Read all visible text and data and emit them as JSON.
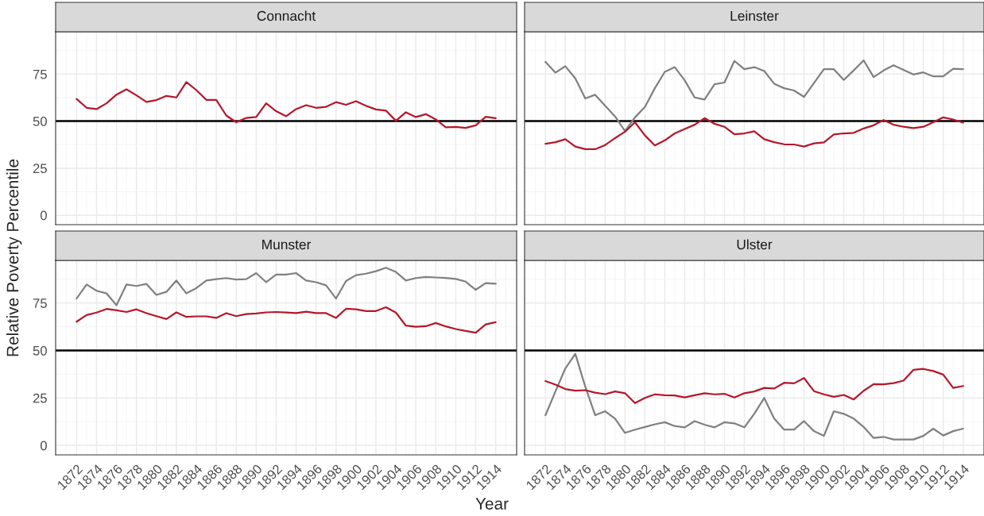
{
  "chart_data": [
    {
      "type": "line",
      "title": "Connacht",
      "xlabel": "Year",
      "ylabel": "Relative Poverty Percentile",
      "x": [
        1872,
        1873,
        1874,
        1875,
        1876,
        1877,
        1878,
        1879,
        1880,
        1881,
        1882,
        1883,
        1884,
        1885,
        1886,
        1887,
        1888,
        1889,
        1890,
        1891,
        1892,
        1893,
        1894,
        1895,
        1896,
        1897,
        1898,
        1899,
        1900,
        1901,
        1902,
        1903,
        1904,
        1905,
        1906,
        1907,
        1908,
        1909,
        1910,
        1911,
        1912,
        1913,
        1914
      ],
      "xlim": [
        1869.9,
        1916.1
      ],
      "xticks": [
        1872,
        1874,
        1876,
        1878,
        1880,
        1882,
        1884,
        1886,
        1888,
        1890,
        1892,
        1894,
        1896,
        1898,
        1900,
        1902,
        1904,
        1906,
        1908,
        1910,
        1912,
        1914
      ],
      "ylim": [
        -5,
        97.5
      ],
      "yticks": [
        0,
        25,
        50,
        75
      ],
      "grid": true,
      "legend": false,
      "tick_labels": "y",
      "ref_lines": [
        {
          "axis": "y",
          "value": 50,
          "color": "#000000"
        }
      ],
      "series": [
        {
          "color": "#b5172b",
          "values": [
            61.8,
            57.1,
            56.4,
            59.5,
            64.1,
            66.9,
            63.7,
            60.2,
            61.2,
            63.4,
            62.6,
            70.8,
            66.5,
            61.3,
            61.3,
            53.0,
            49.4,
            51.7,
            52.2,
            59.5,
            55.3,
            52.6,
            56.4,
            58.5,
            57.1,
            57.6,
            60.1,
            58.7,
            60.6,
            58.2,
            56.2,
            55.6,
            50.2,
            54.7,
            52.2,
            53.7,
            50.9,
            46.7,
            46.9,
            46.4,
            47.8,
            52.3,
            51.6
          ]
        }
      ]
    },
    {
      "type": "line",
      "title": "Leinster",
      "x": [
        1872,
        1873,
        1874,
        1875,
        1876,
        1877,
        1878,
        1879,
        1880,
        1881,
        1882,
        1883,
        1884,
        1885,
        1886,
        1887,
        1888,
        1889,
        1890,
        1891,
        1892,
        1893,
        1894,
        1895,
        1896,
        1897,
        1898,
        1899,
        1900,
        1901,
        1902,
        1903,
        1904,
        1905,
        1906,
        1907,
        1908,
        1909,
        1910,
        1911,
        1912,
        1913,
        1914
      ],
      "xlim": [
        1869.9,
        1916.1
      ],
      "xticks": [
        1872,
        1874,
        1876,
        1878,
        1880,
        1882,
        1884,
        1886,
        1888,
        1890,
        1892,
        1894,
        1896,
        1898,
        1900,
        1902,
        1904,
        1906,
        1908,
        1910,
        1912,
        1914
      ],
      "ylim": [
        -5,
        97.5
      ],
      "yticks": [
        0,
        25,
        50,
        75
      ],
      "grid": true,
      "legend": false,
      "tick_labels": false,
      "ref_lines": [
        {
          "axis": "y",
          "value": 50,
          "color": "#000000"
        }
      ],
      "series": [
        {
          "color": "#808080",
          "values": [
            81.5,
            75.8,
            79.2,
            72.7,
            62.1,
            64.0,
            58.2,
            52.5,
            44.7,
            52.0,
            57.5,
            67.5,
            76.2,
            78.7,
            71.7,
            62.6,
            61.5,
            69.6,
            70.5,
            82.0,
            77.6,
            78.7,
            76.6,
            69.9,
            67.5,
            66.3,
            62.9,
            70.2,
            77.6,
            77.6,
            71.9,
            77.0,
            82.3,
            73.4,
            76.9,
            79.7,
            77.3,
            74.8,
            75.9,
            73.8,
            73.8,
            77.8,
            77.6
          ]
        },
        {
          "color": "#b5172b",
          "values": [
            38.0,
            38.8,
            40.4,
            36.5,
            35.1,
            35.1,
            37.3,
            41.0,
            44.4,
            49.4,
            42.4,
            37.1,
            39.8,
            43.5,
            45.8,
            48.1,
            51.6,
            48.6,
            47.0,
            43.0,
            43.5,
            44.6,
            40.4,
            38.8,
            37.7,
            37.6,
            36.5,
            38.2,
            38.7,
            42.9,
            43.5,
            43.8,
            46.1,
            47.8,
            50.6,
            48.1,
            47.0,
            46.3,
            47.0,
            49.4,
            52.0,
            50.9,
            49.2
          ]
        }
      ]
    },
    {
      "type": "line",
      "title": "Munster",
      "x": [
        1872,
        1873,
        1874,
        1875,
        1876,
        1877,
        1878,
        1879,
        1880,
        1881,
        1882,
        1883,
        1884,
        1885,
        1886,
        1887,
        1888,
        1889,
        1890,
        1891,
        1892,
        1893,
        1894,
        1895,
        1896,
        1897,
        1898,
        1899,
        1900,
        1901,
        1902,
        1903,
        1904,
        1905,
        1906,
        1907,
        1908,
        1909,
        1910,
        1911,
        1912,
        1913,
        1914
      ],
      "xlim": [
        1869.9,
        1916.1
      ],
      "xticks": [
        1872,
        1874,
        1876,
        1878,
        1880,
        1882,
        1884,
        1886,
        1888,
        1890,
        1892,
        1894,
        1896,
        1898,
        1900,
        1902,
        1904,
        1906,
        1908,
        1910,
        1912,
        1914
      ],
      "ylim": [
        -5,
        97.5
      ],
      "yticks": [
        0,
        25,
        50,
        75
      ],
      "grid": true,
      "legend": false,
      "ref_lines": [
        {
          "axis": "y",
          "value": 50,
          "color": "#000000"
        }
      ],
      "series": [
        {
          "color": "#808080",
          "values": [
            77.4,
            84.8,
            81.5,
            80.1,
            73.9,
            84.8,
            84.0,
            85.1,
            79.3,
            80.9,
            86.9,
            80.1,
            82.9,
            86.9,
            87.6,
            88.2,
            87.4,
            87.6,
            90.8,
            86.0,
            90.0,
            90.0,
            90.8,
            86.9,
            86.0,
            84.4,
            77.4,
            86.6,
            89.7,
            90.5,
            91.8,
            93.6,
            91.4,
            86.9,
            88.2,
            88.8,
            88.5,
            88.2,
            87.7,
            86.3,
            82.0,
            85.5,
            85.2
          ]
        },
        {
          "color": "#b5172b",
          "values": [
            65.2,
            68.7,
            70.0,
            71.9,
            71.2,
            70.3,
            71.7,
            69.7,
            68.1,
            66.6,
            70.1,
            67.7,
            68.0,
            68.0,
            67.2,
            69.7,
            68.1,
            69.2,
            69.5,
            70.1,
            70.3,
            70.0,
            69.7,
            70.5,
            69.7,
            69.7,
            67.2,
            72.0,
            71.7,
            70.8,
            70.8,
            72.8,
            70.0,
            63.1,
            62.5,
            62.8,
            64.5,
            62.7,
            61.3,
            60.3,
            59.4,
            63.8,
            64.9
          ]
        }
      ]
    },
    {
      "type": "line",
      "title": "Ulster",
      "x": [
        1872,
        1873,
        1874,
        1875,
        1876,
        1877,
        1878,
        1879,
        1880,
        1881,
        1882,
        1883,
        1884,
        1885,
        1886,
        1887,
        1888,
        1889,
        1890,
        1891,
        1892,
        1893,
        1894,
        1895,
        1896,
        1897,
        1898,
        1899,
        1900,
        1901,
        1902,
        1903,
        1904,
        1905,
        1906,
        1907,
        1908,
        1909,
        1910,
        1911,
        1912,
        1913,
        1914
      ],
      "xlim": [
        1869.9,
        1916.1
      ],
      "xticks": [
        1872,
        1874,
        1876,
        1878,
        1880,
        1882,
        1884,
        1886,
        1888,
        1890,
        1892,
        1894,
        1896,
        1898,
        1900,
        1902,
        1904,
        1906,
        1908,
        1910,
        1912,
        1914
      ],
      "ylim": [
        -5,
        97.5
      ],
      "yticks": [
        0,
        25,
        50,
        75
      ],
      "grid": true,
      "legend": false,
      "tick_labels": "x",
      "ref_lines": [
        {
          "axis": "y",
          "value": 50,
          "color": "#000000"
        }
      ],
      "series": [
        {
          "color": "#808080",
          "values": [
            15.9,
            28.4,
            40.6,
            48.3,
            31.0,
            15.9,
            18.0,
            14.1,
            6.6,
            8.3,
            9.7,
            11.1,
            12.2,
            10.2,
            9.5,
            12.8,
            10.9,
            9.5,
            12.2,
            11.6,
            9.5,
            16.7,
            25.0,
            14.1,
            8.3,
            8.3,
            12.8,
            7.5,
            5.0,
            18.0,
            16.6,
            14.1,
            9.7,
            3.9,
            4.5,
            3.1,
            3.1,
            3.1,
            5.0,
            8.8,
            5.2,
            7.5,
            8.8
          ]
        },
        {
          "color": "#b5172b",
          "values": [
            33.9,
            32.0,
            29.7,
            28.8,
            29.1,
            27.8,
            27.0,
            28.4,
            27.5,
            22.3,
            25.0,
            26.9,
            26.4,
            26.3,
            25.3,
            26.4,
            27.5,
            26.9,
            27.2,
            25.2,
            27.5,
            28.4,
            30.3,
            30.0,
            33.0,
            32.7,
            35.5,
            28.6,
            26.9,
            25.6,
            26.6,
            24.2,
            28.8,
            32.3,
            32.2,
            32.8,
            34.1,
            39.8,
            40.3,
            39.2,
            37.3,
            30.3,
            31.3
          ]
        }
      ]
    }
  ]
}
